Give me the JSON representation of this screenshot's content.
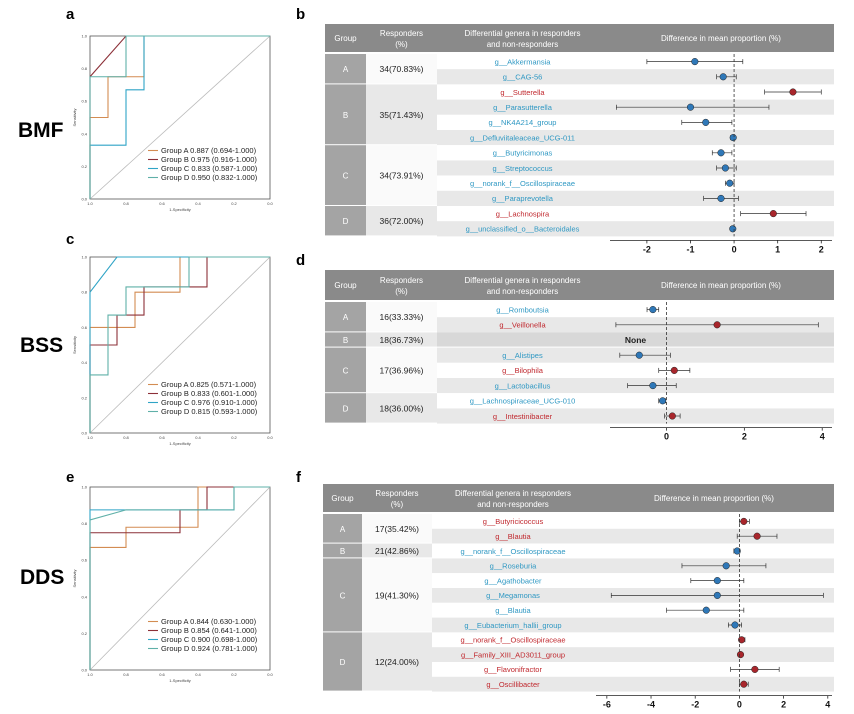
{
  "panel_labels": {
    "a": "a",
    "b": "b",
    "c": "c",
    "d": "d",
    "e": "e",
    "f": "f"
  },
  "row_labels": {
    "bmf": "BMF",
    "bss": "BSS",
    "dds": "DDS"
  },
  "roc_axis": {
    "y_ticks": [
      "1.0",
      "0.8",
      "0.6",
      "0.4",
      "0.2",
      "0.0"
    ],
    "x_ticks": [
      "1.0",
      "0.8",
      "0.6",
      "0.4",
      "0.2",
      "0.0"
    ],
    "y_label": "Sensitivity",
    "x_label": "1-Specificity"
  },
  "table_headers": {
    "group": "Group",
    "responders_1": "Responders",
    "responders_2": "(%)",
    "genera_1": "Differential genera in responders",
    "genera_2": "and non-responders",
    "difference": "Difference in mean proportion (%)"
  },
  "colors": {
    "header_gray": "#8a8a8a",
    "group_gray": "#a4a4a4",
    "row_shade": "#e8e8e8",
    "up_red": "#c0282e",
    "down_blue": "#2f98c3",
    "dot_red": "#a8262c",
    "dot_blue": "#2f78b8",
    "roc_a": "#d38c52",
    "roc_b": "#8c3038",
    "roc_c": "#2fa4c6",
    "roc_d": "#5fb0a8"
  },
  "chart_data": [
    {
      "panel": "a",
      "type": "line",
      "title": "BMF ROC",
      "xlabel": "1-Specificity",
      "ylabel": "Sensitivity",
      "xlim": [
        1.0,
        0.0
      ],
      "ylim": [
        0,
        1
      ],
      "series": [
        {
          "name": "Group A",
          "legend": "Group A 0.887 (0.694-1.000)",
          "color": "#d38c52",
          "points": [
            [
              1.0,
              0.0
            ],
            [
              1.0,
              0.5
            ],
            [
              0.9,
              0.5
            ],
            [
              0.9,
              0.75
            ],
            [
              0.7,
              0.75
            ],
            [
              0.7,
              1.0
            ],
            [
              0.0,
              1.0
            ]
          ]
        },
        {
          "name": "Group B",
          "legend": "Group B 0.975 (0.916-1.000)",
          "color": "#8c3038",
          "points": [
            [
              1.0,
              0.0
            ],
            [
              1.0,
              0.75
            ],
            [
              0.8,
              1.0
            ],
            [
              0.0,
              1.0
            ]
          ]
        },
        {
          "name": "Group C",
          "legend": "Group C 0.833 (0.587-1.000)",
          "color": "#2fa4c6",
          "points": [
            [
              1.0,
              0.0
            ],
            [
              1.0,
              0.33
            ],
            [
              0.8,
              0.33
            ],
            [
              0.8,
              0.67
            ],
            [
              0.7,
              0.67
            ],
            [
              0.7,
              1.0
            ],
            [
              0.0,
              1.0
            ]
          ]
        },
        {
          "name": "Group D",
          "legend": "Group D 0.950 (0.832-1.000)",
          "color": "#5fb0a8",
          "points": [
            [
              1.0,
              0.0
            ],
            [
              1.0,
              0.75
            ],
            [
              0.8,
              0.75
            ],
            [
              0.8,
              1.0
            ],
            [
              0.0,
              1.0
            ]
          ]
        }
      ]
    },
    {
      "panel": "c",
      "type": "line",
      "title": "BSS ROC",
      "xlabel": "1-Specificity",
      "ylabel": "Sensitivity",
      "xlim": [
        1.0,
        0.0
      ],
      "ylim": [
        0,
        1
      ],
      "series": [
        {
          "name": "Group A",
          "legend": "Group A 0.825 (0.571-1.000)",
          "color": "#d38c52",
          "points": [
            [
              1.0,
              0.0
            ],
            [
              1.0,
              0.6
            ],
            [
              0.75,
              0.6
            ],
            [
              0.75,
              0.8
            ],
            [
              0.5,
              0.8
            ],
            [
              0.5,
              1.0
            ],
            [
              0.0,
              1.0
            ]
          ]
        },
        {
          "name": "Group B",
          "legend": "Group B 0.833 (0.601-1.000)",
          "color": "#8c3038",
          "points": [
            [
              1.0,
              0.0
            ],
            [
              1.0,
              0.5
            ],
            [
              0.85,
              0.5
            ],
            [
              0.85,
              0.67
            ],
            [
              0.7,
              0.67
            ],
            [
              0.7,
              0.83
            ],
            [
              0.35,
              0.83
            ],
            [
              0.35,
              1.0
            ],
            [
              0.0,
              1.0
            ]
          ]
        },
        {
          "name": "Group C",
          "legend": "Group C 0.976 (0.910-1.000)",
          "color": "#2fa4c6",
          "points": [
            [
              1.0,
              0.0
            ],
            [
              1.0,
              0.8
            ],
            [
              0.85,
              1.0
            ],
            [
              0.0,
              1.0
            ]
          ]
        },
        {
          "name": "Group D",
          "legend": "Group D 0.815 (0.593-1.000)",
          "color": "#5fb0a8",
          "points": [
            [
              1.0,
              0.0
            ],
            [
              1.0,
              0.33
            ],
            [
              0.9,
              0.33
            ],
            [
              0.9,
              0.67
            ],
            [
              0.8,
              0.67
            ],
            [
              0.8,
              0.83
            ],
            [
              0.45,
              0.83
            ],
            [
              0.45,
              1.0
            ],
            [
              0.0,
              1.0
            ]
          ]
        }
      ]
    },
    {
      "panel": "e",
      "type": "line",
      "title": "DDS ROC",
      "xlabel": "1-Specificity",
      "ylabel": "Sensitivity",
      "xlim": [
        1.0,
        0.0
      ],
      "ylim": [
        0,
        1
      ],
      "series": [
        {
          "name": "Group A",
          "legend": "Group A 0.844 (0.630-1.000)",
          "color": "#d38c52",
          "points": [
            [
              1.0,
              0.0
            ],
            [
              1.0,
              0.67
            ],
            [
              0.8,
              0.67
            ],
            [
              0.8,
              0.78
            ],
            [
              0.4,
              0.78
            ],
            [
              0.4,
              1.0
            ],
            [
              0.0,
              1.0
            ]
          ]
        },
        {
          "name": "Group B",
          "legend": "Group B 0.854 (0.641-1.000)",
          "color": "#8c3038",
          "points": [
            [
              1.0,
              0.0
            ],
            [
              1.0,
              0.75
            ],
            [
              0.5,
              0.75
            ],
            [
              0.5,
              0.875
            ],
            [
              0.35,
              0.875
            ],
            [
              0.35,
              1.0
            ],
            [
              0.0,
              1.0
            ]
          ]
        },
        {
          "name": "Group C",
          "legend": "Group C 0.900 (0.698-1.000)",
          "color": "#2fa4c6",
          "points": [
            [
              1.0,
              0.0
            ],
            [
              1.0,
              0.875
            ],
            [
              0.2,
              0.875
            ],
            [
              0.2,
              1.0
            ],
            [
              0.0,
              1.0
            ]
          ]
        },
        {
          "name": "Group D",
          "legend": "Group D 0.924 (0.781-1.000)",
          "color": "#5fb0a8",
          "points": [
            [
              1.0,
              0.0
            ],
            [
              1.0,
              0.82
            ],
            [
              0.8,
              0.875
            ],
            [
              0.2,
              0.875
            ],
            [
              0.2,
              1.0
            ],
            [
              0.0,
              1.0
            ]
          ]
        }
      ]
    },
    {
      "panel": "b",
      "type": "scatter",
      "title": "BMF differential genera",
      "xlabel": "Difference in mean proportion (%)",
      "xlim": [
        -2.8,
        2.2
      ],
      "xticks": [
        -2,
        -1,
        0,
        1,
        2
      ],
      "groups": [
        {
          "group": "A",
          "responders": "34(70.83%)",
          "rows": [
            {
              "genus": "g__Akkermansia",
              "dir": "down",
              "mean": -0.9,
              "lo": -2.0,
              "hi": 0.2
            },
            {
              "genus": "g__CAG-56",
              "dir": "down",
              "mean": -0.25,
              "lo": -0.4,
              "hi": 0.05
            }
          ]
        },
        {
          "group": "B",
          "responders": "35(71.43%)",
          "rows": [
            {
              "genus": "g__Sutterella",
              "dir": "up",
              "mean": 1.35,
              "lo": 0.7,
              "hi": 2.0
            },
            {
              "genus": "g__Parasutterella",
              "dir": "down",
              "mean": -1.0,
              "lo": -2.7,
              "hi": 0.8
            },
            {
              "genus": "g__NK4A214_group",
              "dir": "down",
              "mean": -0.65,
              "lo": -1.2,
              "hi": -0.05
            },
            {
              "genus": "g__Defluviitaleaceae_UCG-011",
              "dir": "down",
              "mean": -0.02,
              "lo": -0.08,
              "hi": 0.02
            }
          ]
        },
        {
          "group": "C",
          "responders": "34(73.91%)",
          "rows": [
            {
              "genus": "g__Butyricimonas",
              "dir": "down",
              "mean": -0.3,
              "lo": -0.5,
              "hi": -0.05
            },
            {
              "genus": "g__Streptococcus",
              "dir": "down",
              "mean": -0.2,
              "lo": -0.4,
              "hi": 0.05
            },
            {
              "genus": "g__norank_f__Oscillospiraceae",
              "dir": "down",
              "mean": -0.1,
              "lo": -0.2,
              "hi": 0.0
            },
            {
              "genus": "g__Paraprevotella",
              "dir": "down",
              "mean": -0.3,
              "lo": -0.7,
              "hi": 0.1
            }
          ]
        },
        {
          "group": "D",
          "responders": "36(72.00%)",
          "rows": [
            {
              "genus": "g__Lachnospira",
              "dir": "up",
              "mean": 0.9,
              "lo": 0.15,
              "hi": 1.65
            },
            {
              "genus": "g__unclassified_o__Bacteroidales",
              "dir": "down",
              "mean": -0.03,
              "lo": -0.08,
              "hi": 0.01
            }
          ]
        }
      ]
    },
    {
      "panel": "d",
      "type": "scatter",
      "title": "BSS differential genera",
      "xlabel": "Difference in mean proportion (%)",
      "xlim": [
        -1.4,
        4.2
      ],
      "xticks": [
        0,
        2,
        4
      ],
      "groups": [
        {
          "group": "A",
          "responders": "16(33.33%)",
          "rows": [
            {
              "genus": "g__Romboutsia",
              "dir": "down",
              "mean": -0.35,
              "lo": -0.5,
              "hi": -0.2
            },
            {
              "genus": "g__Veillonella",
              "dir": "up",
              "mean": 1.3,
              "lo": -1.3,
              "hi": 3.9
            }
          ]
        },
        {
          "group": "B",
          "responders": "18(36.73%)",
          "none": "None",
          "rows": []
        },
        {
          "group": "C",
          "responders": "17(36.96%)",
          "rows": [
            {
              "genus": "g__Alistipes",
              "dir": "down",
              "mean": -0.7,
              "lo": -1.2,
              "hi": 0.1
            },
            {
              "genus": "g__Bilophila",
              "dir": "up",
              "mean": 0.2,
              "lo": -0.2,
              "hi": 0.6
            },
            {
              "genus": "g__Lactobacillus",
              "dir": "down",
              "mean": -0.35,
              "lo": -1.0,
              "hi": 0.25
            }
          ]
        },
        {
          "group": "D",
          "responders": "18(36.00%)",
          "rows": [
            {
              "genus": "g__Lachnospiraceae_UCG-010",
              "dir": "down",
              "mean": -0.1,
              "lo": -0.2,
              "hi": -0.02
            },
            {
              "genus": "g__Intestinibacter",
              "dir": "up",
              "mean": 0.15,
              "lo": -0.05,
              "hi": 0.35
            }
          ]
        }
      ]
    },
    {
      "panel": "f",
      "type": "scatter",
      "title": "DDS differential genera",
      "xlabel": "Difference in mean proportion (%)",
      "xlim": [
        -6.4,
        4.1
      ],
      "xticks": [
        -6,
        -4,
        -2,
        0,
        2,
        4
      ],
      "groups": [
        {
          "group": "A",
          "responders": "17(35.42%)",
          "rows": [
            {
              "genus": "g__Butyricicoccus",
              "dir": "up",
              "mean": 0.2,
              "lo": 0.0,
              "hi": 0.45
            },
            {
              "genus": "g__Blautia",
              "dir": "up",
              "mean": 0.8,
              "lo": -0.1,
              "hi": 1.7
            }
          ]
        },
        {
          "group": "B",
          "responders": "21(42.86%)",
          "rows": [
            {
              "genus": "g__norank_f__Oscillospiraceae",
              "dir": "down",
              "mean": -0.1,
              "lo": -0.25,
              "hi": 0.02
            }
          ]
        },
        {
          "group": "C",
          "responders": "19(41.30%)",
          "rows": [
            {
              "genus": "g__Roseburia",
              "dir": "down",
              "mean": -0.6,
              "lo": -2.6,
              "hi": 1.2
            },
            {
              "genus": "g__Agathobacter",
              "dir": "down",
              "mean": -1.0,
              "lo": -2.2,
              "hi": 0.2
            },
            {
              "genus": "g__Megamonas",
              "dir": "down",
              "mean": -1.0,
              "lo": -5.8,
              "hi": 3.8
            },
            {
              "genus": "g__Blautia",
              "dir": "down",
              "mean": -1.5,
              "lo": -3.3,
              "hi": 0.2
            },
            {
              "genus": "g__Eubacterium_hallii_group",
              "dir": "down",
              "mean": -0.2,
              "lo": -0.5,
              "hi": 0.1
            }
          ]
        },
        {
          "group": "D",
          "responders": "12(24.00%)",
          "rows": [
            {
              "genus": "g__norank_f__Oscillospiraceae",
              "dir": "up",
              "mean": 0.1,
              "lo": 0.0,
              "hi": 0.25
            },
            {
              "genus": "g__Family_XIII_AD3011_group",
              "dir": "up",
              "mean": 0.05,
              "lo": -0.05,
              "hi": 0.15
            },
            {
              "genus": "g__Flavonifractor",
              "dir": "up",
              "mean": 0.7,
              "lo": -0.4,
              "hi": 1.8
            },
            {
              "genus": "g__Oscillibacter",
              "dir": "up",
              "mean": 0.2,
              "lo": 0.0,
              "hi": 0.4
            }
          ]
        }
      ]
    }
  ]
}
